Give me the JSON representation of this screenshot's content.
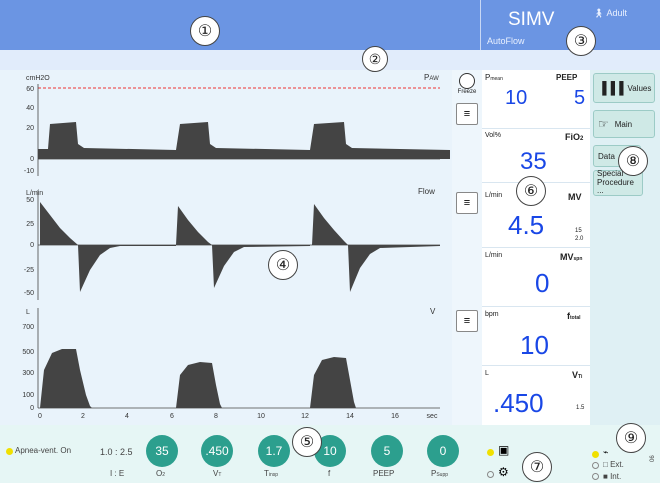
{
  "colors": {
    "header": "#6b95e3",
    "waveform_bg": "#e9f3fb",
    "value_blue": "#1947e6",
    "teal": "#2c9f8e",
    "side_panel": "#dff0f4",
    "bottom_bar": "#e6f6f5",
    "alarm_yellow": "#f0e000"
  },
  "header": {
    "mode": "SIMV",
    "submode": "AutoFlow",
    "patient": "Adult",
    "patient_icon": "person-icon"
  },
  "callouts": [
    "①",
    "②",
    "③",
    "④",
    "⑤",
    "⑥",
    "⑦",
    "⑧",
    "⑨"
  ],
  "waveforms": {
    "paw": {
      "unit": "cmH2O",
      "name": "P",
      "name_sub": "AW",
      "ticks": [
        "60",
        "40",
        "20",
        "0",
        "-10"
      ]
    },
    "flow": {
      "unit": "L/min",
      "name": "Flow",
      "ticks": [
        "50",
        "25",
        "0",
        "-25",
        "-50"
      ]
    },
    "volume": {
      "unit": "L",
      "name": "V",
      "ticks": [
        "700",
        "500",
        "300",
        "100",
        "0"
      ]
    },
    "time_axis": {
      "ticks": [
        "0",
        "2",
        "4",
        "6",
        "8",
        "10",
        "12",
        "14",
        "16"
      ],
      "unit": "sec"
    }
  },
  "mid_controls": {
    "freeze_label": "Freeze",
    "freeze_icon": "freeze-circle-icon",
    "scale_icon": "scale-icon"
  },
  "values": {
    "pmean_label": "P",
    "pmean_sub": "mean",
    "pmean": "10",
    "peep_label": "PEEP",
    "peep": "5",
    "fio2_unit": "Vol%",
    "fio2_label": "FiO",
    "fio2_sub": "2",
    "fio2": "35",
    "mv_unit": "L/min",
    "mv_label": "MV",
    "mv": "4.5",
    "mv_limit_hi": "15",
    "mv_limit_lo": "2.0",
    "mvspn_unit": "L/min",
    "mvspn_label": "MV",
    "mvspn_sub": "spn",
    "mvspn": "0",
    "ftotal_unit": "bpm",
    "ftotal_label": "f",
    "ftotal_sub": "total",
    "ftotal": "10",
    "vt_unit": "L",
    "vt_label": "V",
    "vt_sub": "Ti",
    "vt": ".450",
    "vt_limit": "1.5"
  },
  "side": {
    "values_btn": "Values",
    "main_btn": "Main",
    "data_btn": "Data",
    "special_btn": "Special Procedure ..."
  },
  "bottom": {
    "alarm": "Apnea-vent. On",
    "ie_value": "1.0 : 2.5",
    "ie_label": "I : E",
    "settings": [
      {
        "value": "35",
        "label": "O",
        "sub": "2"
      },
      {
        "value": ".450",
        "label": "V",
        "sub": "T"
      },
      {
        "value": "1.7",
        "label": "T",
        "sub": "insp"
      },
      {
        "value": "10",
        "label": "f",
        "sub": ""
      },
      {
        "value": "5",
        "label": "PEEP",
        "sub": ""
      },
      {
        "value": "0",
        "label": "P",
        "sub": "Supp"
      }
    ],
    "ext_label": "Ext.",
    "int_label": "Int.",
    "side_code": "06"
  }
}
